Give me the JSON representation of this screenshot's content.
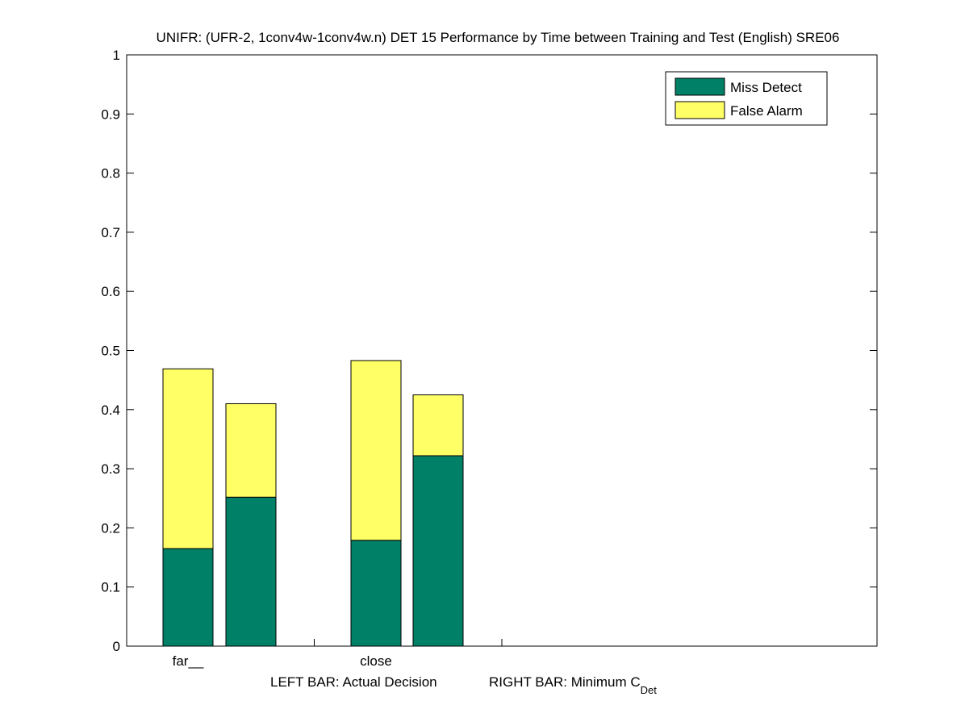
{
  "chart_data": {
    "type": "bar",
    "stacked": true,
    "title": "UNIFR: (UFR-2, 1conv4w-1conv4w.n) DET 15 Performance by Time between Training and Test (English) SRE06",
    "xlabel": {
      "left": "LEFT BAR: Actual Decision",
      "right_prefix": "RIGHT BAR: Minimum C",
      "right_subscript": "Det"
    },
    "ylabel": "",
    "ylim": [
      0,
      1
    ],
    "yticks": [
      "0",
      "0.1",
      "0.2",
      "0.3",
      "0.4",
      "0.5",
      "0.6",
      "0.7",
      "0.8",
      "0.9",
      "1"
    ],
    "categories": [
      "far__",
      "close"
    ],
    "bar_labels": [
      "Actual Decision",
      "Minimum CDet"
    ],
    "series": [
      {
        "name": "Miss Detect",
        "color": "#008066",
        "values": [
          [
            0.165,
            0.252
          ],
          [
            0.179,
            0.322
          ]
        ]
      },
      {
        "name": "False Alarm",
        "color": "#ffff66",
        "values": [
          [
            0.304,
            0.158
          ],
          [
            0.304,
            0.103
          ]
        ]
      }
    ],
    "legend": {
      "position": "top-right"
    },
    "grid": false
  }
}
